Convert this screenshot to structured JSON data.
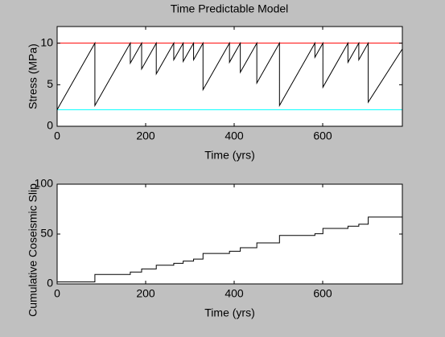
{
  "chart_data": [
    {
      "type": "line",
      "title": "Time Predictable Model",
      "xlabel": "Time (yrs)",
      "ylabel": "Stress (MPa)",
      "xlim": [
        0,
        780
      ],
      "xticks": [
        0,
        200,
        400,
        600
      ],
      "ylim": [
        0,
        12
      ],
      "yticks": [
        0,
        5,
        10
      ],
      "x": [
        0,
        85.3,
        85.3,
        165.3,
        165.3,
        190.9,
        190.9,
        224.0,
        224.0,
        263.5,
        263.5,
        284.8,
        284.8,
        308.3,
        308.3,
        329.6,
        329.6,
        389.4,
        389.4,
        413.9,
        413.9,
        451.2,
        451.2,
        502.4,
        502.4,
        582.4,
        582.4,
        600.5,
        600.5,
        657.1,
        657.1,
        681.6,
        681.6,
        702.9,
        702.9,
        780
      ],
      "series": [
        {
          "color": "#000000",
          "values": [
            2,
            10,
            2.5,
            10,
            7.6,
            10,
            6.9,
            10,
            6.3,
            10,
            8,
            10,
            7.8,
            10,
            8,
            10,
            4.4,
            10,
            7.7,
            10,
            6.5,
            10,
            5.2,
            10,
            2.5,
            10,
            8.3,
            10,
            4.7,
            10,
            7.7,
            10,
            8,
            10,
            2.9,
            9.3
          ]
        }
      ],
      "hlines": [
        {
          "value": 10,
          "color": "#ff0000"
        },
        {
          "value": 2,
          "color": "#00ffff"
        }
      ]
    },
    {
      "type": "line",
      "xlabel": "Time (yrs)",
      "ylabel": "Cumulative Coseismic Slip",
      "xlim": [
        0,
        780
      ],
      "xticks": [
        0,
        200,
        400,
        600
      ],
      "ylim": [
        0,
        100
      ],
      "yticks": [
        0,
        50,
        100
      ],
      "x": [
        0,
        85.3,
        85.3,
        165.3,
        165.3,
        190.9,
        190.9,
        224.0,
        224.0,
        263.5,
        263.5,
        284.8,
        284.8,
        308.3,
        308.3,
        329.6,
        329.6,
        389.4,
        389.4,
        413.9,
        413.9,
        451.2,
        451.2,
        502.4,
        502.4,
        582.4,
        582.4,
        600.5,
        600.5,
        657.1,
        657.1,
        681.6,
        681.6,
        702.9,
        702.9,
        780
      ],
      "series": [
        {
          "color": "#000000",
          "values": [
            2,
            2,
            9.5,
            9.5,
            11.9,
            11.9,
            15.0,
            15.0,
            18.7,
            18.7,
            20.7,
            20.7,
            22.9,
            22.9,
            24.9,
            24.9,
            30.5,
            30.5,
            32.8,
            32.8,
            36.3,
            36.3,
            41.1,
            41.1,
            48.6,
            48.6,
            50.3,
            50.3,
            55.6,
            55.6,
            57.9,
            57.9,
            59.9,
            59.9,
            67.0,
            67.0
          ]
        }
      ]
    }
  ]
}
